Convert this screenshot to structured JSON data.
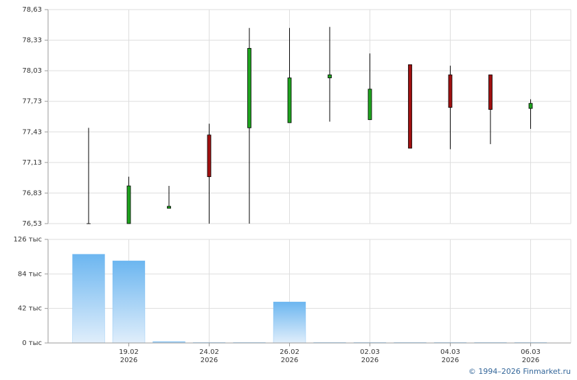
{
  "chart_data": [
    {
      "type": "candlestick",
      "open": [
        76.53,
        76.53,
        76.68,
        77.4,
        77.47,
        77.52,
        77.96,
        77.55,
        78.09,
        77.99,
        77.99,
        77.66
      ],
      "high": [
        77.47,
        76.99,
        76.9,
        77.51,
        78.45,
        78.45,
        78.46,
        78.2,
        78.09,
        78.08,
        77.99,
        77.75
      ],
      "low": [
        76.53,
        76.53,
        76.68,
        76.53,
        76.53,
        77.52,
        77.53,
        77.55,
        77.27,
        77.26,
        77.31,
        77.46
      ],
      "close": [
        76.53,
        76.9,
        76.7,
        76.99,
        78.25,
        77.96,
        77.99,
        77.85,
        77.27,
        77.67,
        77.65,
        77.71
      ],
      "up_color": "#1fa31f",
      "down_color": "#a01010",
      "ylim": [
        76.53,
        78.63
      ],
      "yticks": [
        {
          "value": 76.53,
          "label": "76,53"
        },
        {
          "value": 76.83,
          "label": "76,83"
        },
        {
          "value": 77.13,
          "label": "77,13"
        },
        {
          "value": 77.43,
          "label": "77,43"
        },
        {
          "value": 77.73,
          "label": "77,73"
        },
        {
          "value": 78.03,
          "label": "78,03"
        },
        {
          "value": 78.33,
          "label": "78,33"
        },
        {
          "value": 78.63,
          "label": "78,63"
        }
      ],
      "grid": true
    },
    {
      "type": "bar",
      "categories": [
        null,
        "19.02",
        null,
        "24.02",
        null,
        "26.02",
        null,
        "02.03",
        null,
        "04.03",
        null,
        "06.03"
      ],
      "category_years": [
        null,
        "2026",
        null,
        "2026",
        null,
        "2026",
        null,
        "2026",
        null,
        "2026",
        null,
        "2026"
      ],
      "values": [
        108000,
        100000,
        1700,
        500,
        500,
        50000,
        500,
        500,
        500,
        500,
        500,
        500
      ],
      "color": "#6cb6f0",
      "ylim": [
        0,
        126000
      ],
      "yticks": [
        {
          "value": 0,
          "label": "0 тыс"
        },
        {
          "value": 42000,
          "label": "42 тыс"
        },
        {
          "value": 84000,
          "label": "84 тыс"
        },
        {
          "value": 126000,
          "label": "126 тыс"
        }
      ],
      "grid": true
    }
  ],
  "footer": "© 1994–2026 Finmarket.ru"
}
